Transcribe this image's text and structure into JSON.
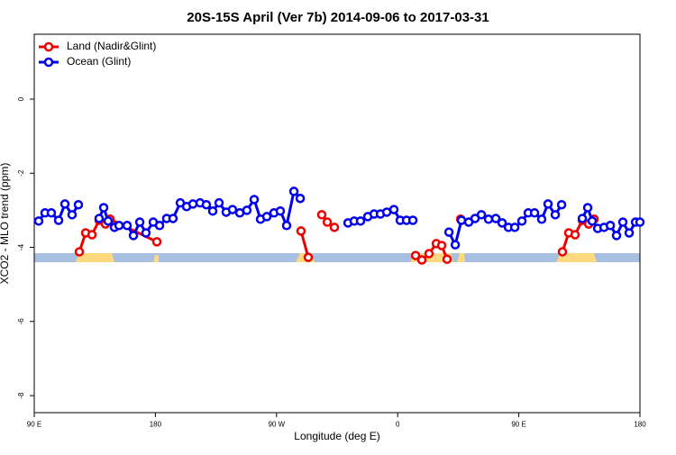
{
  "chart_data": {
    "type": "line",
    "title": "20S-15S April (Ver 7b)   2014-09-06 to 2017-03-31",
    "x_label": "Longitude (deg E)",
    "y_label": "XCO2 - MLO trend (ppm)",
    "xlim": [
      90,
      540
    ],
    "ylim": [
      -8.46,
      1.75
    ],
    "xticks": [
      {
        "value": 90,
        "label": "90 E"
      },
      180,
      {
        "value": 270,
        "label": "90 W"
      },
      {
        "value": 360,
        "label": "0"
      },
      {
        "value": 450,
        "label": "90 E"
      },
      {
        "value": 540,
        "label": "180"
      }
    ],
    "yticks": [
      0,
      -2,
      -4,
      -6,
      -8
    ],
    "legend": "top-left",
    "series": [
      {
        "name": "Land (Nadir&Glint)",
        "color": "#ee0000",
        "x": [
          123.5,
          128.2,
          132.9,
          138.2,
          142.9,
          146.3,
          181.1,
          null,
          288.2,
          293.6,
          null,
          303.6,
          307.7,
          313.0,
          null,
          373.3,
          378.0,
          383.3,
          388.7,
          392.7,
          396.7,
          null,
          406.8,
          null,
          482.4,
          487.1,
          491.8,
          497.2,
          501.9,
          505.9
        ],
        "values": [
          -4.12,
          -3.61,
          -3.66,
          -3.27,
          -3.37,
          -3.24,
          -3.85,
          null,
          -3.56,
          -4.27,
          null,
          -3.12,
          -3.32,
          -3.46,
          null,
          -4.22,
          -4.34,
          -4.17,
          -3.9,
          -3.95,
          -4.32,
          null,
          -3.24,
          null,
          -4.12,
          -3.61,
          -3.66,
          -3.27,
          -3.37,
          -3.24
        ]
      },
      {
        "name": "Ocean (Glint)",
        "color": "#0000ee",
        "x": [
          93.3,
          98.0,
          102.7,
          108.1,
          112.8,
          118.1,
          122.8,
          null,
          138.2,
          141.6,
          144.9,
          149.6,
          153.0,
          159.0,
          163.7,
          168.4,
          173.0,
          178.4,
          183.1,
          188.4,
          193.1,
          198.5,
          203.2,
          207.9,
          213.2,
          217.9,
          222.6,
          227.3,
          232.6,
          237.3,
          242.7,
          248.0,
          253.4,
          258.1,
          262.8,
          268.1,
          272.8,
          277.5,
          282.9,
          287.6,
          null,
          323.1,
          327.7,
          332.4,
          337.8,
          342.5,
          347.2,
          351.9,
          357.2,
          361.9,
          366.6,
          371.3,
          null,
          398.1,
          402.8,
          407.4,
          412.8,
          417.5,
          422.2,
          427.5,
          432.9,
          437.6,
          442.3,
          447.0,
          452.3,
          457.0,
          461.7,
          467.0,
          471.7,
          477.1,
          481.8,
          null,
          497.2,
          501.2,
          504.5,
          508.6,
          513.3,
          518.0,
          522.6,
          527.3,
          532.0,
          536.7,
          540
        ],
        "values": [
          -3.29,
          -3.07,
          -3.07,
          -3.27,
          -2.83,
          -3.12,
          -2.85,
          null,
          -3.22,
          -2.93,
          -3.29,
          -3.46,
          -3.41,
          -3.41,
          -3.68,
          -3.32,
          -3.61,
          -3.32,
          -3.41,
          -3.22,
          -3.22,
          -2.8,
          -2.9,
          -2.83,
          -2.8,
          -2.85,
          -3.02,
          -2.8,
          -3.05,
          -2.98,
          -3.07,
          -3.0,
          -2.71,
          -3.24,
          -3.17,
          -3.07,
          -3.02,
          -3.41,
          -2.49,
          -2.68,
          null,
          -3.34,
          -3.29,
          -3.29,
          -3.17,
          -3.1,
          -3.1,
          -3.05,
          -2.98,
          -3.27,
          -3.27,
          -3.27,
          null,
          -3.59,
          -3.93,
          -3.27,
          -3.32,
          -3.22,
          -3.12,
          -3.24,
          -3.22,
          -3.34,
          -3.46,
          -3.46,
          -3.29,
          -3.07,
          -3.07,
          -3.24,
          -2.83,
          -3.12,
          -2.85,
          null,
          -3.22,
          -2.93,
          -3.29,
          -3.49,
          -3.46,
          -3.41,
          -3.68,
          -3.32,
          -3.61,
          -3.32,
          -3.32
        ]
      }
    ]
  }
}
